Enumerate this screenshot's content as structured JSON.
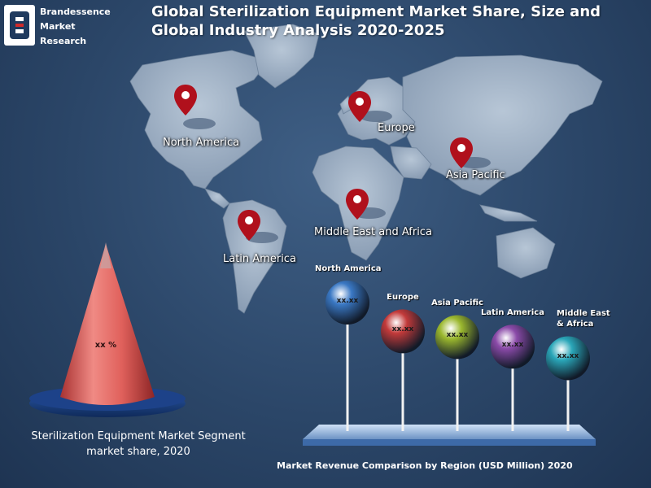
{
  "brand": {
    "line1": "Brandessence",
    "line2": "Market",
    "line3": "Research",
    "logo_letter": "B"
  },
  "title": {
    "line1": "Global Sterilization Equipment Market Share, Size and",
    "line2": "Global Industry Analysis 2020-2025"
  },
  "map_regions": [
    "North America",
    "Europe",
    "Asia Pacific",
    "Middle East and Africa",
    "Latin America"
  ],
  "cone": {
    "value_label": "xx %",
    "caption_line1": "Sterilization Equipment  Market Segment",
    "caption_line2": "market share, 2020"
  },
  "colors": {
    "background": "#2b4668",
    "landmass": "#9fb1c6",
    "pin": "#b0101c",
    "cone": "#e0615c",
    "cone_base": "#1a3b78",
    "platform": "#8fb3df"
  },
  "chart_data": {
    "type": "bar",
    "title": "Market Revenue Comparison by Region (USD Million) 2020",
    "categories": [
      "North America",
      "Europe",
      "Asia Pacific",
      "Latin America",
      "Middle East & Africa"
    ],
    "category_lines": [
      [
        "North America"
      ],
      [
        "Europe"
      ],
      [
        "Asia Pacific"
      ],
      [
        "Latin America"
      ],
      [
        "Middle East",
        "& Africa"
      ]
    ],
    "value_labels": [
      "xx.xx",
      "xx.xx",
      "xx.xx",
      "xx.xx",
      "xx.xx"
    ],
    "values": [
      5,
      3.5,
      3.2,
      2.7,
      2.1
    ],
    "ball_colors": [
      "#3a78c4",
      "#c23a3a",
      "#9bb82e",
      "#8a4aa8",
      "#2aa6b8"
    ]
  }
}
